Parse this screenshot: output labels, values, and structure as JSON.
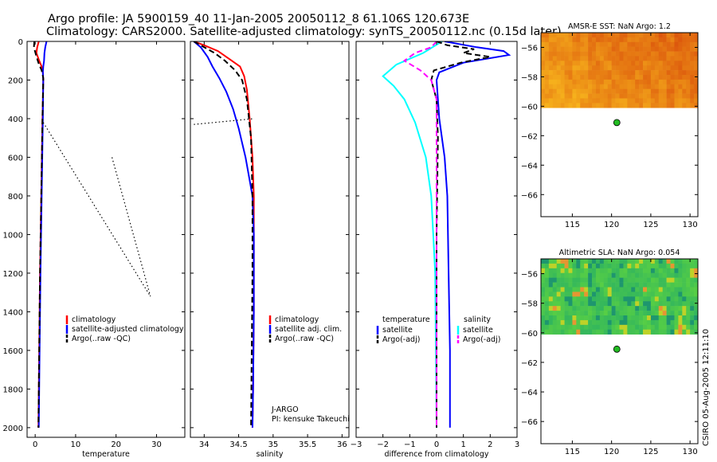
{
  "figure": {
    "title_line1": "Argo profile: JA 5900159_40 11-Jan-2005 20050112_8 61.106S 120.673E",
    "title_line2": "Climatology: CARS2000. Satellite-adjusted climatology: synTS_20050112.nc (0.15d later)",
    "credit": "CSIRO 05-Aug-2005 12:11:10"
  },
  "colors": {
    "climatology": "#ff0000",
    "satellite": "#0000ff",
    "salinity_sat": "#00ffff",
    "argo_adj_sal": "#ff00ff",
    "argo": "#000000",
    "station": "#22bb22"
  },
  "chart_data": [
    {
      "type": "line",
      "id": "temperature",
      "xlabel": "temperature",
      "xlim": [
        -2,
        37
      ],
      "ylim": [
        0,
        2050
      ],
      "x_ticks": [
        0,
        10,
        20,
        30
      ],
      "y_ticks": [
        0,
        200,
        400,
        600,
        800,
        1000,
        1200,
        1400,
        1600,
        1800,
        2000
      ],
      "legend": [
        "climatology",
        "satellite-adjusted climatology",
        "Argo(..raw -QC)"
      ],
      "series": [
        {
          "name": "climatology",
          "color": "#ff0000",
          "style": "solid",
          "x": [
            0.9,
            0.5,
            0.3,
            1.0,
            1.6,
            1.9,
            2.0,
            1.8,
            1.5,
            1.2,
            1.0,
            0.8
          ],
          "y": [
            0,
            30,
            60,
            100,
            130,
            160,
            200,
            400,
            800,
            1200,
            1600,
            2000
          ]
        },
        {
          "name": "satellite-adjusted climatology",
          "color": "#0000ff",
          "style": "solid",
          "x": [
            2.8,
            2.5,
            2.3,
            2.2,
            2.0,
            1.9,
            2.0,
            1.9,
            1.6,
            1.3,
            1.1,
            0.9
          ],
          "y": [
            0,
            30,
            60,
            100,
            130,
            160,
            200,
            400,
            800,
            1200,
            1600,
            2000
          ]
        },
        {
          "name": "Argo(..raw -QC)",
          "color": "#000000",
          "style": "dashed",
          "x": [
            -0.2,
            -0.3,
            0.2,
            0.8,
            1.6,
            2.0,
            2.0,
            1.8,
            1.5,
            1.2,
            1.0,
            0.8
          ],
          "y": [
            0,
            30,
            70,
            110,
            150,
            190,
            200,
            400,
            800,
            1200,
            1600,
            2000
          ]
        },
        {
          "name": "raw-segment-a",
          "color": "#000000",
          "style": "dotted",
          "x": [
            2.0,
            28.5
          ],
          "y": [
            420,
            1320
          ]
        },
        {
          "name": "raw-segment-b",
          "color": "#000000",
          "style": "dotted",
          "x": [
            19.0,
            28.5
          ],
          "y": [
            600,
            1320
          ]
        }
      ]
    },
    {
      "type": "line",
      "id": "salinity",
      "xlabel": "salinity",
      "xlim": [
        33.8,
        36.1
      ],
      "ylim": [
        0,
        2050
      ],
      "x_ticks": [
        34,
        34.5,
        35,
        35.5,
        36
      ],
      "legend": [
        "climatology",
        "satellite adj. clim.",
        "Argo(..raw -QC)"
      ],
      "annotation": [
        "J-ARGO",
        "PI: kensuke Takeuchi"
      ],
      "series": [
        {
          "name": "climatology",
          "color": "#ff0000",
          "style": "solid",
          "x": [
            33.85,
            34.0,
            34.2,
            34.4,
            34.52,
            34.58,
            34.62,
            34.66,
            34.7,
            34.72,
            34.72,
            34.72,
            34.71,
            34.7
          ],
          "y": [
            0,
            20,
            50,
            100,
            130,
            180,
            250,
            400,
            600,
            800,
            1000,
            1400,
            1800,
            2000
          ]
        },
        {
          "name": "satellite adj. clim.",
          "color": "#0000ff",
          "style": "solid",
          "x": [
            33.85,
            33.95,
            34.05,
            34.12,
            34.22,
            34.32,
            34.42,
            34.5,
            34.6,
            34.7,
            34.72,
            34.72,
            34.71,
            34.7
          ],
          "y": [
            0,
            30,
            80,
            130,
            190,
            260,
            350,
            450,
            600,
            800,
            1000,
            1400,
            1800,
            2000
          ]
        },
        {
          "name": "Argo(..raw -QC)",
          "color": "#000000",
          "style": "dashed",
          "x": [
            33.85,
            34.0,
            34.15,
            34.3,
            34.45,
            34.55,
            34.62,
            34.68,
            34.7,
            34.7,
            34.69,
            34.68
          ],
          "y": [
            0,
            30,
            60,
            100,
            150,
            200,
            300,
            500,
            800,
            1200,
            1600,
            2000
          ]
        },
        {
          "name": "raw-segment",
          "color": "#000000",
          "style": "dotted",
          "x": [
            33.85,
            34.72
          ],
          "y": [
            430,
            400
          ]
        }
      ]
    },
    {
      "type": "line",
      "id": "difference",
      "xlabel": "difference from climatology",
      "xlim": [
        -3,
        3
      ],
      "ylim": [
        0,
        2050
      ],
      "x_ticks": [
        -3,
        -2,
        -1,
        0,
        1,
        2,
        3
      ],
      "legend_temperature": {
        "title": "temperature",
        "entries": [
          "satellite",
          "Argo(-adj)"
        ]
      },
      "legend_salinity": {
        "title": "salinity",
        "entries": [
          "satellite",
          "Argo(-adj)"
        ]
      },
      "series": [
        {
          "name": "temperature satellite",
          "color": "#0000ff",
          "style": "solid",
          "x": [
            0.3,
            1.5,
            2.5,
            2.7,
            1.0,
            0.1,
            0.0,
            0.1,
            0.3,
            0.4,
            0.45,
            0.5,
            0.5
          ],
          "y": [
            0,
            30,
            50,
            70,
            110,
            160,
            200,
            400,
            600,
            800,
            1200,
            1600,
            2000
          ]
        },
        {
          "name": "salinity satellite",
          "color": "#00ffff",
          "style": "solid",
          "x": [
            0.2,
            -0.5,
            -1.5,
            -2.0,
            -1.6,
            -1.2,
            -0.8,
            -0.4,
            -0.2,
            -0.05,
            0.0
          ],
          "y": [
            0,
            60,
            120,
            180,
            230,
            300,
            420,
            600,
            800,
            1200,
            2000
          ]
        },
        {
          "name": "temperature Argo(-adj)",
          "color": "#000000",
          "style": "dashed",
          "x": [
            0.0,
            0.4,
            1.4,
            1.0,
            2.0,
            0.9,
            -0.1,
            -0.2,
            0.0,
            0.05,
            0.0,
            0.0
          ],
          "y": [
            0,
            20,
            40,
            60,
            80,
            110,
            150,
            200,
            300,
            500,
            1000,
            2000
          ]
        },
        {
          "name": "salinity Argo(-adj)",
          "color": "#ff00ff",
          "style": "dashed",
          "x": [
            0.0,
            -0.2,
            -0.8,
            -1.2,
            -0.6,
            -0.2,
            0.0,
            0.0,
            0.0,
            0.0
          ],
          "y": [
            0,
            30,
            60,
            100,
            150,
            200,
            300,
            400,
            800,
            2000
          ]
        }
      ]
    },
    {
      "type": "heatmap",
      "id": "sst-map",
      "title": "AMSR-E SST: NaN Argo: 1.2",
      "xlim": [
        111,
        131
      ],
      "ylim": [
        -67.5,
        -55
      ],
      "x_ticks": [
        115,
        120,
        125,
        130
      ],
      "y_ticks": [
        -56,
        -58,
        -60,
        -62,
        -64,
        -66
      ],
      "data_lat_range": [
        -60.1,
        -55
      ],
      "palette": "orange",
      "station": {
        "lon": 120.673,
        "lat": -61.106
      }
    },
    {
      "type": "heatmap",
      "id": "sla-map",
      "title": "Altimetric SLA: NaN Argo: 0.054",
      "xlim": [
        111,
        131
      ],
      "ylim": [
        -67.5,
        -55
      ],
      "x_ticks": [
        115,
        120,
        125,
        130
      ],
      "y_ticks": [
        -56,
        -58,
        -60,
        -62,
        -64,
        -66
      ],
      "data_lat_range": [
        -60.1,
        -55
      ],
      "palette": "green",
      "station": {
        "lon": 120.673,
        "lat": -61.106
      }
    }
  ]
}
